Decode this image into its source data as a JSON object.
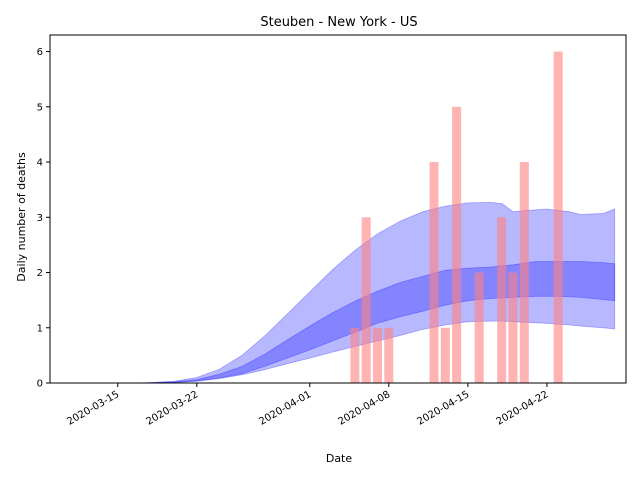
{
  "chart_data": {
    "type": "bar",
    "title": "Steuben - New York - US",
    "xlabel": "Date",
    "ylabel": "Daily number of deaths",
    "x_range": [
      "2020-03-09",
      "2020-04-29"
    ],
    "ylim": [
      0,
      6.3
    ],
    "x_ticks": [
      "2020-03-15",
      "2020-03-22",
      "2020-04-01",
      "2020-04-08",
      "2020-04-15",
      "2020-04-22"
    ],
    "y_ticks": [
      0,
      1,
      2,
      3,
      4,
      5,
      6
    ],
    "grid": false,
    "legend": "none",
    "bar_color": "#ff8080",
    "band_color": "#0000ff",
    "bars": [
      {
        "date": "2020-04-05",
        "value": 1
      },
      {
        "date": "2020-04-06",
        "value": 3
      },
      {
        "date": "2020-04-07",
        "value": 1
      },
      {
        "date": "2020-04-08",
        "value": 1
      },
      {
        "date": "2020-04-12",
        "value": 4
      },
      {
        "date": "2020-04-13",
        "value": 1
      },
      {
        "date": "2020-04-14",
        "value": 5
      },
      {
        "date": "2020-04-16",
        "value": 2
      },
      {
        "date": "2020-04-18",
        "value": 3
      },
      {
        "date": "2020-04-19",
        "value": 2
      },
      {
        "date": "2020-04-20",
        "value": 4
      },
      {
        "date": "2020-04-23",
        "value": 6
      }
    ],
    "outer_band": [
      {
        "date": "2020-03-17",
        "low": 0,
        "high": 0
      },
      {
        "date": "2020-03-20",
        "low": 0.01,
        "high": 0.03
      },
      {
        "date": "2020-03-22",
        "low": 0.03,
        "high": 0.1
      },
      {
        "date": "2020-03-24",
        "low": 0.08,
        "high": 0.25
      },
      {
        "date": "2020-03-26",
        "low": 0.15,
        "high": 0.5
      },
      {
        "date": "2020-03-28",
        "low": 0.24,
        "high": 0.85
      },
      {
        "date": "2020-03-30",
        "low": 0.35,
        "high": 1.25
      },
      {
        "date": "2020-04-01",
        "low": 0.45,
        "high": 1.65
      },
      {
        "date": "2020-04-03",
        "low": 0.56,
        "high": 2.05
      },
      {
        "date": "2020-04-05",
        "low": 0.66,
        "high": 2.4
      },
      {
        "date": "2020-04-07",
        "low": 0.76,
        "high": 2.7
      },
      {
        "date": "2020-04-09",
        "low": 0.86,
        "high": 2.93
      },
      {
        "date": "2020-04-11",
        "low": 0.97,
        "high": 3.1
      },
      {
        "date": "2020-04-13",
        "low": 1.05,
        "high": 3.2
      },
      {
        "date": "2020-04-15",
        "low": 1.11,
        "high": 3.26
      },
      {
        "date": "2020-04-17",
        "low": 1.12,
        "high": 3.27
      },
      {
        "date": "2020-04-18",
        "low": 1.12,
        "high": 3.25
      },
      {
        "date": "2020-04-19",
        "low": 1.11,
        "high": 3.1
      },
      {
        "date": "2020-04-20",
        "low": 1.1,
        "high": 3.12
      },
      {
        "date": "2020-04-22",
        "low": 1.08,
        "high": 3.15
      },
      {
        "date": "2020-04-24",
        "low": 1.05,
        "high": 3.1
      },
      {
        "date": "2020-04-25",
        "low": 1.03,
        "high": 3.05
      },
      {
        "date": "2020-04-27",
        "low": 1.0,
        "high": 3.07
      },
      {
        "date": "2020-04-28",
        "low": 0.98,
        "high": 3.15
      }
    ],
    "inner_band": [
      {
        "date": "2020-03-17",
        "low": 0,
        "high": 0
      },
      {
        "date": "2020-03-20",
        "low": 0.01,
        "high": 0.02
      },
      {
        "date": "2020-03-22",
        "low": 0.04,
        "high": 0.06
      },
      {
        "date": "2020-03-24",
        "low": 0.09,
        "high": 0.16
      },
      {
        "date": "2020-03-26",
        "low": 0.17,
        "high": 0.3
      },
      {
        "date": "2020-03-28",
        "low": 0.3,
        "high": 0.52
      },
      {
        "date": "2020-03-30",
        "low": 0.45,
        "high": 0.78
      },
      {
        "date": "2020-04-01",
        "low": 0.6,
        "high": 1.03
      },
      {
        "date": "2020-04-03",
        "low": 0.76,
        "high": 1.27
      },
      {
        "date": "2020-04-05",
        "low": 0.92,
        "high": 1.48
      },
      {
        "date": "2020-04-07",
        "low": 1.08,
        "high": 1.66
      },
      {
        "date": "2020-04-09",
        "low": 1.2,
        "high": 1.82
      },
      {
        "date": "2020-04-11",
        "low": 1.3,
        "high": 1.93
      },
      {
        "date": "2020-04-13",
        "low": 1.41,
        "high": 2.04
      },
      {
        "date": "2020-04-15",
        "low": 1.49,
        "high": 2.08
      },
      {
        "date": "2020-04-17",
        "low": 1.53,
        "high": 2.1
      },
      {
        "date": "2020-04-19",
        "low": 1.55,
        "high": 2.14
      },
      {
        "date": "2020-04-21",
        "low": 1.57,
        "high": 2.2
      },
      {
        "date": "2020-04-23",
        "low": 1.57,
        "high": 2.2
      },
      {
        "date": "2020-04-25",
        "low": 1.55,
        "high": 2.2
      },
      {
        "date": "2020-04-27",
        "low": 1.51,
        "high": 2.18
      },
      {
        "date": "2020-04-28",
        "low": 1.49,
        "high": 2.16
      }
    ]
  }
}
